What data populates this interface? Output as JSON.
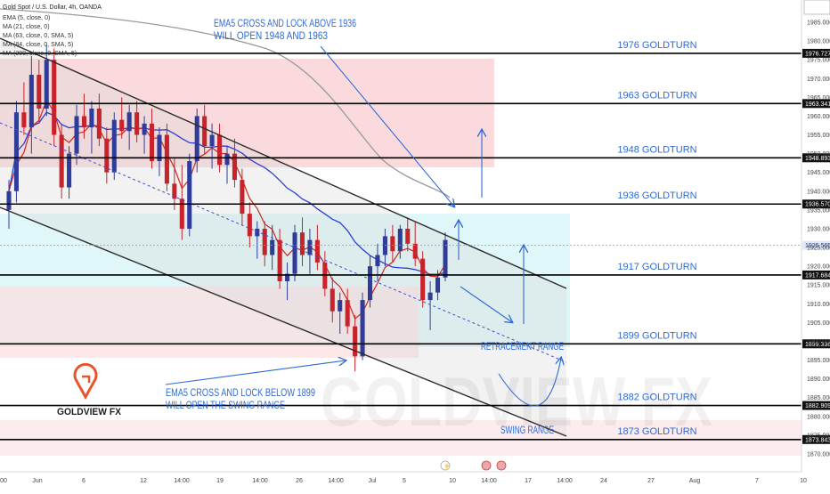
{
  "header": {
    "title": "Gold Spot / U.S. Dollar, 4h, OANDA",
    "indicators": [
      "EMA (5, close, 0)",
      "MA (21, close, 0)",
      "MA (63, close, 0, SMA, 5)",
      "MA (84, close, 0, SMA, 5)",
      "MA (200, close, 0, SMA, 5)"
    ]
  },
  "brand": {
    "name": "GOLDVIEW FX",
    "watermark": "GOLDVIEW FX",
    "logo_color": "#e8542b"
  },
  "colors": {
    "up_candle": "#2f3c9a",
    "down_candle": "#c8232b",
    "ema5": "#d0281d",
    "ma21": "#2a3fd0",
    "ma200": "#9a9a9a",
    "annotation_text": "#2e6ad6",
    "channel_line": "#2b2b2b"
  },
  "chart_data": {
    "type": "candlestick",
    "symbol": "XAUUSD",
    "timeframe": "4h",
    "ylim": [
      1870,
      1990
    ],
    "y_ticks": [
      1870,
      1875,
      1880,
      1885,
      1890,
      1895,
      1900,
      1905,
      1910,
      1915,
      1920,
      1925,
      1930,
      1935,
      1940,
      1945,
      1950,
      1955,
      1960,
      1965,
      1970,
      1975,
      1980,
      1985
    ],
    "x_ticks": [
      "00",
      "Jun",
      "6",
      "12",
      "14:00",
      "19",
      "14:00",
      "26",
      "14:00",
      "Jul",
      "5",
      "10",
      "14:00",
      "17",
      "14:00",
      "24",
      "27",
      "Aug",
      "7",
      "10"
    ],
    "price_levels": [
      {
        "price": 1976.727,
        "tag": "1976.727",
        "label": "1976 GOLDTURN"
      },
      {
        "price": 1963.341,
        "tag": "1963.341",
        "label": "1963 GOLDTURN"
      },
      {
        "price": 1948.893,
        "tag": "1948.893",
        "label": "1948 GOLDTURN"
      },
      {
        "price": 1936.57,
        "tag": "1936.570",
        "label": "1936 GOLDTURN"
      },
      {
        "price": 1917.684,
        "tag": "1917.684",
        "label": "1917 GOLDTURN"
      },
      {
        "price": 1899.336,
        "tag": "1899.336",
        "label": "1899 GOLDTURN"
      },
      {
        "price": 1882.909,
        "tag": "1882.909",
        "label": "1882 GOLDTURN"
      },
      {
        "price": 1873.843,
        "tag": "1873.843",
        "label": "1873 GOLDTURN"
      }
    ],
    "current_price": {
      "price": 1925.565,
      "tag": "1925.565"
    },
    "annotations": [
      {
        "text": "EMA5 CROSS AND LOCK ABOVE 1936",
        "role": "top-1"
      },
      {
        "text": "WILL OPEN 1948 AND 1963",
        "role": "top-2"
      },
      {
        "text": "EMA5 CROSS AND LOCK BELOW 1899",
        "role": "bottom-1"
      },
      {
        "text": "WILL OPEN THE SWING RANGE",
        "role": "bottom-2"
      },
      {
        "text": "RETRACEMENT RANGE",
        "role": "retracement"
      },
      {
        "text": "SWING RANGE",
        "role": "swing"
      }
    ],
    "candles": [
      {
        "o": 1935,
        "h": 1943,
        "l": 1930,
        "c": 1940
      },
      {
        "o": 1940,
        "h": 1964,
        "l": 1937,
        "c": 1961
      },
      {
        "o": 1961,
        "h": 1969,
        "l": 1955,
        "c": 1957
      },
      {
        "o": 1957,
        "h": 1976,
        "l": 1950,
        "c": 1971
      },
      {
        "o": 1971,
        "h": 1975,
        "l": 1958,
        "c": 1962
      },
      {
        "o": 1962,
        "h": 1979,
        "l": 1960,
        "c": 1975
      },
      {
        "o": 1975,
        "h": 1978,
        "l": 1952,
        "c": 1955
      },
      {
        "o": 1955,
        "h": 1958,
        "l": 1938,
        "c": 1941
      },
      {
        "o": 1941,
        "h": 1952,
        "l": 1938,
        "c": 1950
      },
      {
        "o": 1950,
        "h": 1963,
        "l": 1947,
        "c": 1960
      },
      {
        "o": 1960,
        "h": 1966,
        "l": 1954,
        "c": 1957
      },
      {
        "o": 1957,
        "h": 1964,
        "l": 1950,
        "c": 1962
      },
      {
        "o": 1962,
        "h": 1966,
        "l": 1952,
        "c": 1954
      },
      {
        "o": 1954,
        "h": 1957,
        "l": 1942,
        "c": 1945
      },
      {
        "o": 1945,
        "h": 1961,
        "l": 1943,
        "c": 1959
      },
      {
        "o": 1959,
        "h": 1965,
        "l": 1954,
        "c": 1956
      },
      {
        "o": 1956,
        "h": 1963,
        "l": 1951,
        "c": 1961
      },
      {
        "o": 1961,
        "h": 1964,
        "l": 1953,
        "c": 1955
      },
      {
        "o": 1955,
        "h": 1960,
        "l": 1950,
        "c": 1958
      },
      {
        "o": 1958,
        "h": 1962,
        "l": 1946,
        "c": 1948
      },
      {
        "o": 1948,
        "h": 1957,
        "l": 1944,
        "c": 1955
      },
      {
        "o": 1955,
        "h": 1958,
        "l": 1940,
        "c": 1942
      },
      {
        "o": 1942,
        "h": 1949,
        "l": 1935,
        "c": 1938
      },
      {
        "o": 1938,
        "h": 1947,
        "l": 1927,
        "c": 1930
      },
      {
        "o": 1930,
        "h": 1950,
        "l": 1928,
        "c": 1948
      },
      {
        "o": 1948,
        "h": 1962,
        "l": 1945,
        "c": 1960
      },
      {
        "o": 1960,
        "h": 1963,
        "l": 1950,
        "c": 1952
      },
      {
        "o": 1952,
        "h": 1958,
        "l": 1946,
        "c": 1955
      },
      {
        "o": 1955,
        "h": 1958,
        "l": 1945,
        "c": 1947
      },
      {
        "o": 1947,
        "h": 1952,
        "l": 1942,
        "c": 1950
      },
      {
        "o": 1950,
        "h": 1954,
        "l": 1941,
        "c": 1943
      },
      {
        "o": 1943,
        "h": 1946,
        "l": 1931,
        "c": 1934
      },
      {
        "o": 1934,
        "h": 1937,
        "l": 1925,
        "c": 1928
      },
      {
        "o": 1928,
        "h": 1932,
        "l": 1922,
        "c": 1930
      },
      {
        "o": 1930,
        "h": 1932,
        "l": 1920,
        "c": 1923
      },
      {
        "o": 1923,
        "h": 1931,
        "l": 1919,
        "c": 1927
      },
      {
        "o": 1927,
        "h": 1930,
        "l": 1914,
        "c": 1916
      },
      {
        "o": 1916,
        "h": 1921,
        "l": 1911,
        "c": 1918
      },
      {
        "o": 1918,
        "h": 1931,
        "l": 1916,
        "c": 1929
      },
      {
        "o": 1929,
        "h": 1933,
        "l": 1920,
        "c": 1923
      },
      {
        "o": 1923,
        "h": 1930,
        "l": 1918,
        "c": 1927
      },
      {
        "o": 1927,
        "h": 1931,
        "l": 1919,
        "c": 1921
      },
      {
        "o": 1921,
        "h": 1924,
        "l": 1912,
        "c": 1914
      },
      {
        "o": 1914,
        "h": 1917,
        "l": 1905,
        "c": 1908
      },
      {
        "o": 1908,
        "h": 1913,
        "l": 1902,
        "c": 1911
      },
      {
        "o": 1911,
        "h": 1914,
        "l": 1902,
        "c": 1904
      },
      {
        "o": 1904,
        "h": 1907,
        "l": 1892,
        "c": 1896
      },
      {
        "o": 1896,
        "h": 1913,
        "l": 1895,
        "c": 1911
      },
      {
        "o": 1911,
        "h": 1923,
        "l": 1909,
        "c": 1920
      },
      {
        "o": 1920,
        "h": 1926,
        "l": 1916,
        "c": 1923
      },
      {
        "o": 1923,
        "h": 1930,
        "l": 1920,
        "c": 1928
      },
      {
        "o": 1928,
        "h": 1931,
        "l": 1921,
        "c": 1924
      },
      {
        "o": 1924,
        "h": 1931,
        "l": 1922,
        "c": 1930
      },
      {
        "o": 1930,
        "h": 1933,
        "l": 1924,
        "c": 1926
      },
      {
        "o": 1926,
        "h": 1932,
        "l": 1920,
        "c": 1922
      },
      {
        "o": 1922,
        "h": 1924,
        "l": 1909,
        "c": 1911
      },
      {
        "o": 1911,
        "h": 1916,
        "l": 1903,
        "c": 1913
      },
      {
        "o": 1913,
        "h": 1919,
        "l": 1911,
        "c": 1917
      },
      {
        "o": 1917,
        "h": 1929,
        "l": 1916,
        "c": 1927
      }
    ]
  }
}
